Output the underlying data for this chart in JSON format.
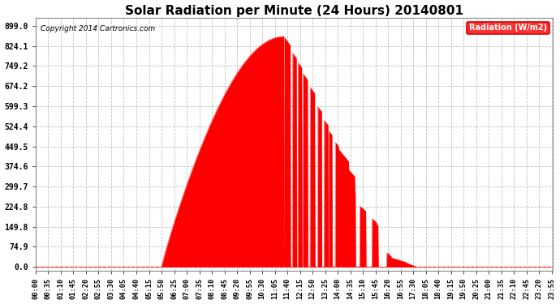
{
  "title": "Solar Radiation per Minute (24 Hours) 20140801",
  "copyright": "Copyright 2014 Cartronics.com",
  "legend_label": "Radiation (W/m2)",
  "bg_color": "#ffffff",
  "plot_bg_color": "#ffffff",
  "fill_color": "#ff0000",
  "line_color": "#ff0000",
  "grid_color": "#c0c0c0",
  "ytick_values": [
    0.0,
    74.9,
    149.8,
    224.8,
    299.7,
    374.6,
    449.5,
    524.4,
    599.3,
    674.2,
    749.2,
    824.1,
    899.0
  ],
  "ymax": 930,
  "ymin": -15,
  "xtick_labels": [
    "00:00",
    "00:35",
    "01:10",
    "01:45",
    "02:20",
    "02:55",
    "03:30",
    "04:05",
    "04:40",
    "05:15",
    "05:50",
    "06:25",
    "07:00",
    "07:35",
    "08:10",
    "08:45",
    "09:20",
    "09:55",
    "10:30",
    "11:05",
    "11:40",
    "12:15",
    "12:50",
    "13:25",
    "14:00",
    "14:35",
    "15:10",
    "15:45",
    "16:20",
    "16:55",
    "17:30",
    "18:05",
    "18:40",
    "19:15",
    "19:50",
    "20:25",
    "21:00",
    "21:35",
    "22:10",
    "22:45",
    "23:20",
    "23:55"
  ]
}
